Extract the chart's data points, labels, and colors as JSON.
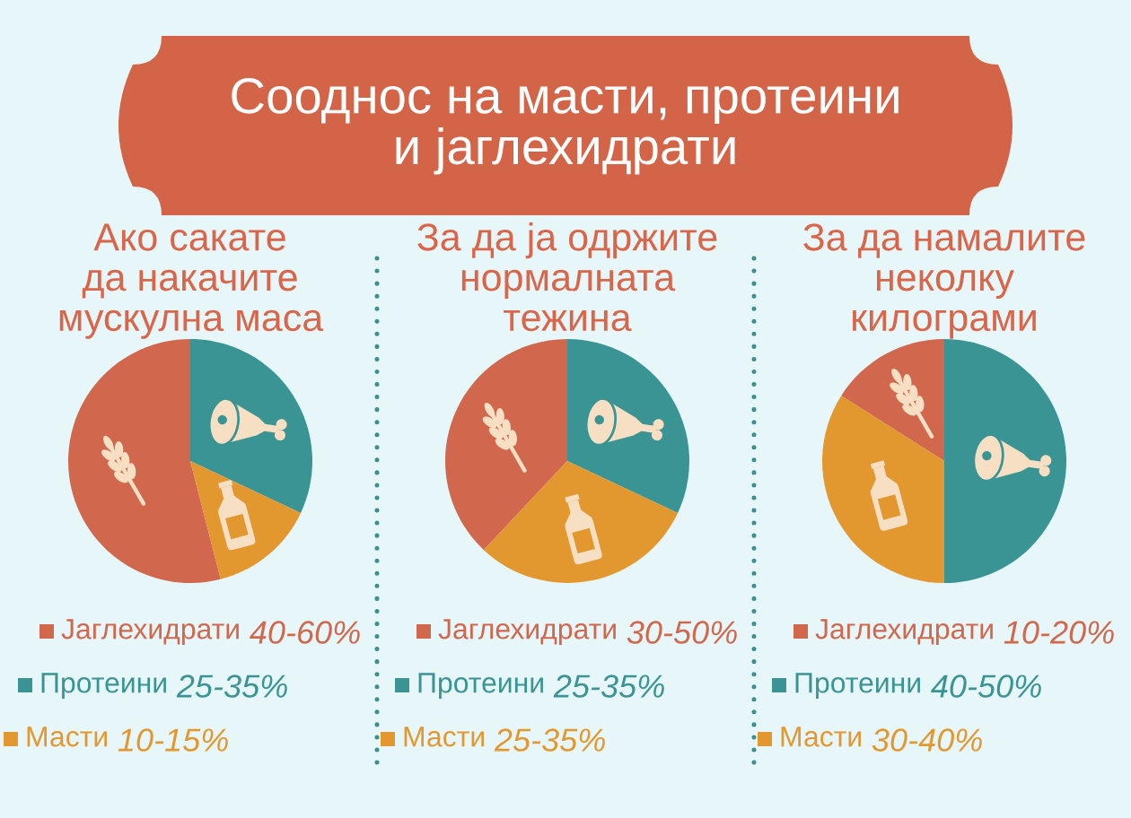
{
  "chart_data": [
    {
      "type": "other",
      "title": "Сооднос на масти, протеини\nи јаглехидрати"
    },
    {
      "type": "pie",
      "title": "Ако сакате\nда накачите\nмускулна маса",
      "categories": [
        "Јаглехидрати",
        "Протеини",
        "Масти"
      ],
      "values": [
        54,
        32,
        14
      ],
      "colors": [
        "#d1674c",
        "#3a9494",
        "#e3972f"
      ],
      "legend": "bottom",
      "annotations": [
        "40-60%",
        "25-35%",
        "10-15%"
      ]
    },
    {
      "type": "pie",
      "title": "За да ја одржите\nнормалната\nтежина",
      "categories": [
        "Јаглехидрати",
        "Протеини",
        "Масти"
      ],
      "values": [
        38,
        32,
        30
      ],
      "colors": [
        "#d1674c",
        "#3a9494",
        "#e3972f"
      ],
      "legend": "bottom",
      "annotations": [
        "30-50%",
        "25-35%",
        "25-35%"
      ]
    },
    {
      "type": "pie",
      "title": "За да намалите\nнеколку\nкилограми",
      "categories": [
        "Јаглехидрати",
        "Протеини",
        "Масти"
      ],
      "values": [
        16,
        50,
        34
      ],
      "colors": [
        "#d1674c",
        "#3a9494",
        "#e3972f"
      ],
      "legend": "bottom",
      "annotations": [
        "10-20%",
        "40-50%",
        "30-40%"
      ]
    }
  ]
}
